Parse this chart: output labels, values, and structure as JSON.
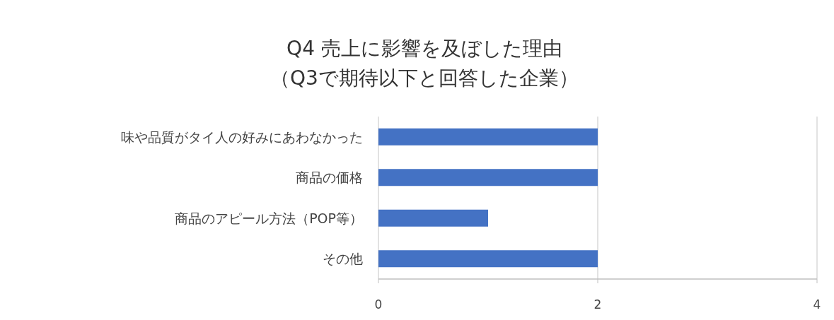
{
  "chart_data": {
    "type": "bar",
    "orientation": "horizontal",
    "title": "Q4 売上に影響を及ぼした理由",
    "subtitle": "（Q3で期待以下と回答した企業）",
    "categories": [
      "味や品質がタイ人の好みにあわなかった",
      "商品の価格",
      "商品のアピール方法（POP等）",
      "その他"
    ],
    "values": [
      2,
      2,
      1,
      2
    ],
    "color": "#4472c4",
    "xlim": [
      0,
      4
    ],
    "xticks": [
      0,
      2,
      4
    ],
    "grid": "x"
  }
}
